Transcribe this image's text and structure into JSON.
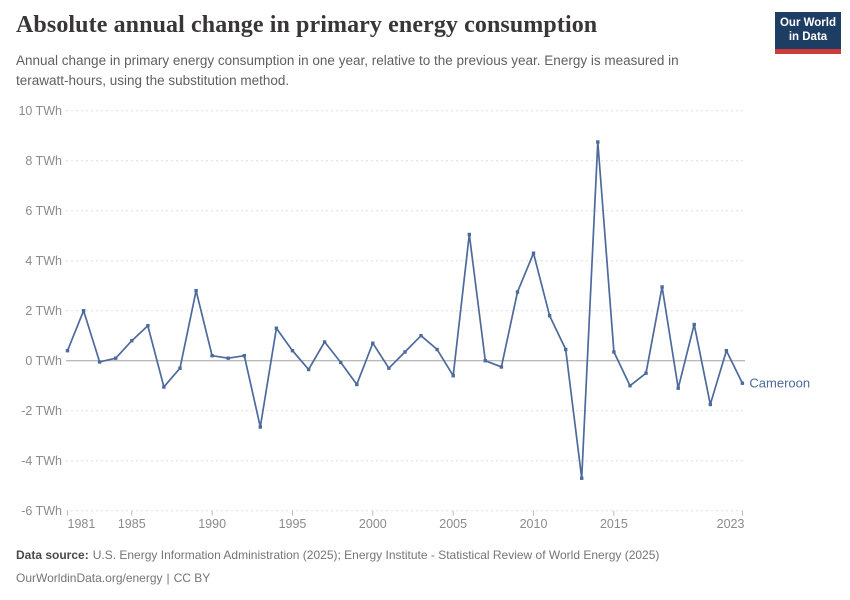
{
  "header": {
    "title": "Absolute annual change in primary energy consumption",
    "subtitle": "Annual change in primary energy consumption in one year, relative to the previous year. Energy is measured in terawatt-hours, using the substitution method.",
    "logo": {
      "line1": "Our World",
      "line2": "in Data"
    }
  },
  "chart_data": {
    "type": "line",
    "title": "Absolute annual change in primary energy consumption",
    "unit": "TWh",
    "entity_label": "Cameroon",
    "x": [
      1981,
      1982,
      1983,
      1984,
      1985,
      1986,
      1987,
      1988,
      1989,
      1990,
      1991,
      1992,
      1993,
      1994,
      1995,
      1996,
      1997,
      1998,
      1999,
      2000,
      2001,
      2002,
      2003,
      2004,
      2005,
      2006,
      2007,
      2008,
      2009,
      2010,
      2011,
      2012,
      2013,
      2014,
      2015,
      2016,
      2017,
      2018,
      2019,
      2020,
      2021,
      2022,
      2023
    ],
    "series": [
      {
        "name": "Cameroon",
        "color": "#4c6a9c",
        "values": [
          0.4,
          2.0,
          -0.05,
          0.1,
          0.8,
          1.4,
          -1.05,
          -0.3,
          2.8,
          0.2,
          0.1,
          0.2,
          -2.65,
          1.3,
          0.4,
          -0.35,
          0.75,
          -0.07,
          -0.95,
          0.7,
          -0.3,
          0.35,
          1.0,
          0.45,
          -0.6,
          5.05,
          0.0,
          -0.25,
          2.75,
          4.3,
          1.8,
          0.45,
          -4.7,
          8.75,
          0.35,
          -1.0,
          -0.5,
          2.95,
          -1.1,
          1.45,
          -1.75,
          0.4,
          -0.9
        ]
      }
    ],
    "y_ticks": [
      10,
      8,
      6,
      4,
      2,
      0,
      -2,
      -4,
      -6
    ],
    "x_ticks": [
      1981,
      1985,
      1990,
      1995,
      2000,
      2005,
      2010,
      2015,
      2023
    ],
    "ylim": [
      -6,
      10
    ],
    "xlim": [
      1981,
      2023
    ],
    "grid": "dashed horizontal gridlines, solid zero line",
    "legend_position": "end-of-line label"
  },
  "footer": {
    "datasource_label": "Data source:",
    "datasource_text": "U.S. Energy Information Administration (2025); Energy Institute - Statistical Review of World Energy (2025)",
    "link_text": "OurWorldinData.org/energy",
    "license_separator": "|",
    "license": "CC BY"
  },
  "colors": {
    "line": "#4c6a9c",
    "grid": "#dddddd",
    "zero_line": "#a3a3a3",
    "tick": "#bbbbbb",
    "axis_text": "#8b8b8b",
    "logo_bg": "#1d3d63",
    "logo_stripe": "#cf3b3b"
  }
}
